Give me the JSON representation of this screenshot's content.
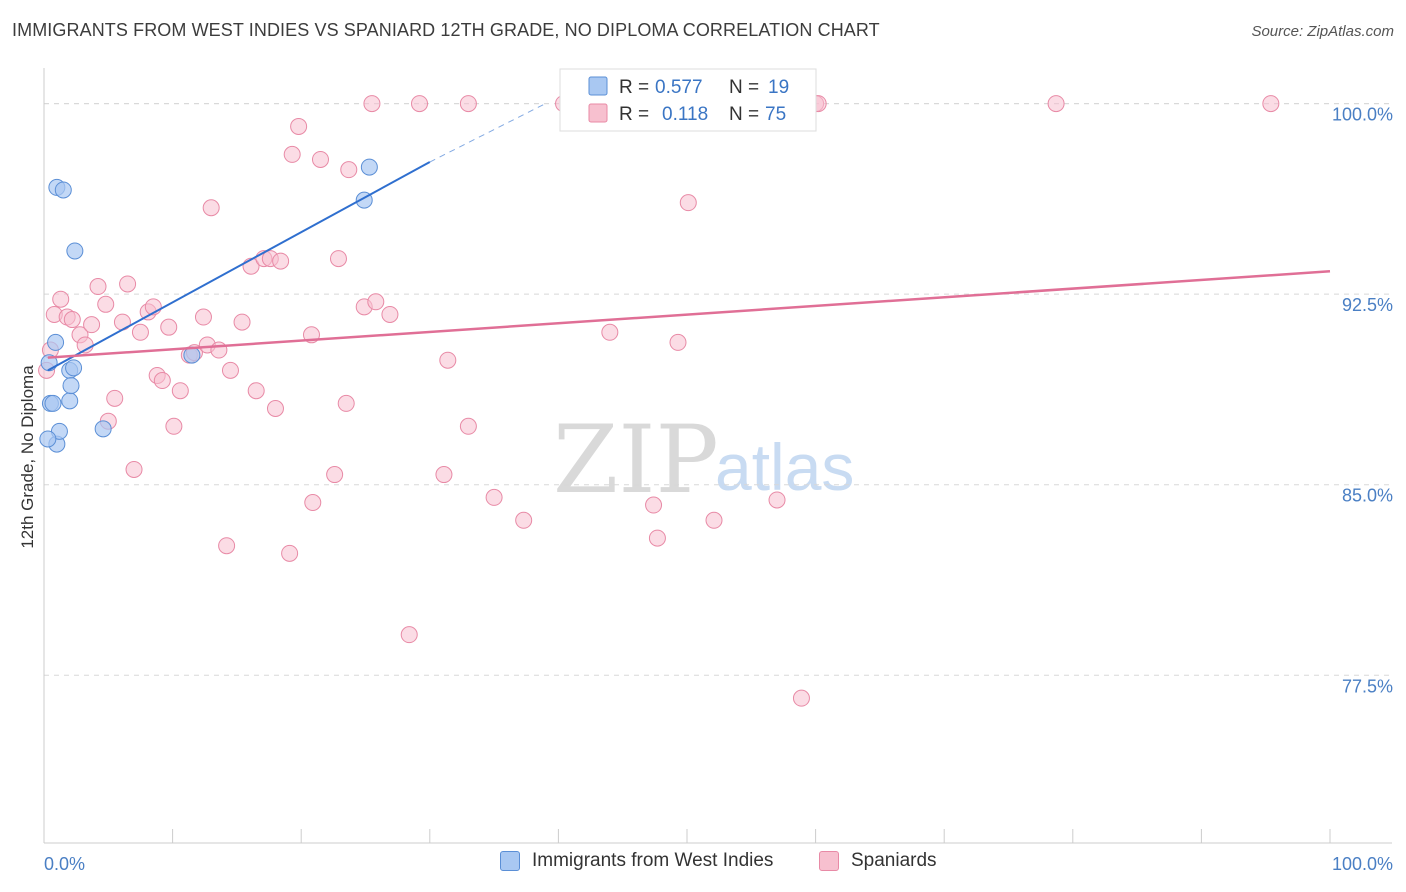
{
  "title": "IMMIGRANTS FROM WEST INDIES VS SPANIARD 12TH GRADE, NO DIPLOMA CORRELATION CHART",
  "source": "Source: ZipAtlas.com",
  "watermark": {
    "zip": "ZIP",
    "atlas": "atlas"
  },
  "colors": {
    "blue_fill": "#a9c8f2",
    "blue_stroke": "#5b8fd6",
    "blue_line": "#2f6fcf",
    "pink_fill": "#f7c0cf",
    "pink_stroke": "#e88aa6",
    "pink_line": "#e06f96",
    "grid": "#d8d8d8",
    "tick_text": "#4a7fc4"
  },
  "legend": {
    "r_label": "R =",
    "n_label": "N =",
    "blue": {
      "r": "0.577",
      "n": "19"
    },
    "pink": {
      "r": "0.118",
      "n": "75"
    }
  },
  "chart_data": {
    "type": "scatter",
    "title": "IMMIGRANTS FROM WEST INDIES VS SPANIARD 12TH GRADE, NO DIPLOMA CORRELATION CHART",
    "xlabel": "",
    "ylabel": "12th Grade, No Diploma",
    "xlim": [
      0,
      100
    ],
    "ylim": [
      70.9,
      101.4
    ],
    "x_tick_labels": [
      "0.0%",
      "100.0%"
    ],
    "y_ticks": [
      77.5,
      85.0,
      92.5,
      100.0
    ],
    "y_tick_labels": [
      "77.5%",
      "85.0%",
      "92.5%",
      "100.0%"
    ],
    "series": [
      {
        "name": "Immigrants from West Indies",
        "color": "blue",
        "points": [
          [
            0.4,
            89.8
          ],
          [
            0.5,
            88.2
          ],
          [
            0.7,
            88.2
          ],
          [
            0.9,
            90.6
          ],
          [
            1.0,
            86.6
          ],
          [
            1.2,
            87.1
          ],
          [
            1.0,
            96.7
          ],
          [
            1.5,
            96.6
          ],
          [
            2.0,
            88.3
          ],
          [
            2.0,
            89.5
          ],
          [
            2.1,
            88.9
          ],
          [
            2.3,
            89.6
          ],
          [
            2.4,
            94.2
          ],
          [
            4.6,
            87.2
          ],
          [
            11.5,
            90.1
          ],
          [
            24.9,
            96.2
          ],
          [
            25.3,
            97.5
          ],
          [
            41.0,
            100.0
          ],
          [
            0.3,
            86.8
          ]
        ],
        "trend": {
          "x0": 0.3,
          "y0": 89.5,
          "x1": 30.0,
          "y1": 97.7,
          "dash_to_x": 39.0,
          "dash_to_y": 100.0
        }
      },
      {
        "name": "Spaniards",
        "color": "pink",
        "points": [
          [
            0.5,
            90.3
          ],
          [
            0.8,
            91.7
          ],
          [
            1.3,
            92.3
          ],
          [
            1.8,
            91.6
          ],
          [
            2.2,
            91.5
          ],
          [
            2.8,
            90.9
          ],
          [
            3.2,
            90.5
          ],
          [
            3.7,
            91.3
          ],
          [
            4.2,
            92.8
          ],
          [
            4.8,
            92.1
          ],
          [
            5.0,
            87.5
          ],
          [
            5.5,
            88.4
          ],
          [
            6.1,
            91.4
          ],
          [
            6.5,
            92.9
          ],
          [
            7.0,
            85.6
          ],
          [
            7.5,
            91.0
          ],
          [
            8.1,
            91.8
          ],
          [
            8.5,
            92.0
          ],
          [
            8.8,
            89.3
          ],
          [
            9.2,
            89.1
          ],
          [
            9.7,
            91.2
          ],
          [
            10.1,
            87.3
          ],
          [
            10.6,
            88.7
          ],
          [
            11.3,
            90.1
          ],
          [
            11.7,
            90.2
          ],
          [
            12.4,
            91.6
          ],
          [
            12.7,
            90.5
          ],
          [
            13.0,
            95.9
          ],
          [
            13.6,
            90.3
          ],
          [
            14.2,
            82.6
          ],
          [
            14.5,
            89.5
          ],
          [
            15.4,
            91.4
          ],
          [
            16.1,
            93.6
          ],
          [
            16.5,
            88.7
          ],
          [
            17.1,
            93.9
          ],
          [
            17.6,
            93.9
          ],
          [
            18.0,
            88.0
          ],
          [
            18.4,
            93.8
          ],
          [
            19.1,
            82.3
          ],
          [
            19.3,
            98.0
          ],
          [
            19.8,
            99.1
          ],
          [
            20.8,
            90.9
          ],
          [
            20.9,
            84.3
          ],
          [
            21.5,
            97.8
          ],
          [
            22.6,
            85.4
          ],
          [
            22.9,
            93.9
          ],
          [
            23.5,
            88.2
          ],
          [
            23.7,
            97.4
          ],
          [
            24.9,
            92.0
          ],
          [
            25.5,
            100.0
          ],
          [
            25.8,
            92.2
          ],
          [
            26.9,
            91.7
          ],
          [
            28.4,
            79.1
          ],
          [
            29.2,
            100.0
          ],
          [
            31.1,
            85.4
          ],
          [
            31.4,
            89.9
          ],
          [
            33.0,
            100.0
          ],
          [
            33.0,
            87.3
          ],
          [
            35.0,
            84.5
          ],
          [
            37.3,
            83.6
          ],
          [
            40.4,
            100.0
          ],
          [
            44.0,
            91.0
          ],
          [
            47.4,
            84.2
          ],
          [
            47.7,
            82.9
          ],
          [
            48.7,
            100.0
          ],
          [
            49.3,
            90.6
          ],
          [
            50.1,
            96.1
          ],
          [
            52.1,
            83.6
          ],
          [
            58.9,
            76.6
          ],
          [
            60.0,
            100.0
          ],
          [
            78.7,
            100.0
          ],
          [
            95.4,
            100.0
          ],
          [
            60.2,
            100.0
          ],
          [
            57.0,
            84.4
          ],
          [
            0.2,
            89.5
          ]
        ],
        "trend": {
          "x0": 0.3,
          "y0": 90.0,
          "x1": 100.0,
          "y1": 93.4
        }
      }
    ],
    "legend_position": "top-center",
    "grid": true
  }
}
